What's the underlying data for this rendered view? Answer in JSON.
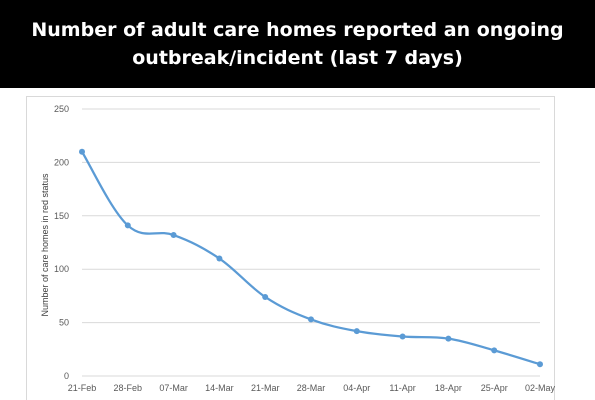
{
  "header": {
    "title": "Number of adult care homes reported an ongoing outbreak/incident (last 7 days)"
  },
  "colors": {
    "banner_bg": "#000000",
    "series_line": "#5b9bd5",
    "gridline": "#d9d9d9"
  },
  "chart_data": {
    "type": "line",
    "title": "",
    "xlabel": "",
    "ylabel": "Number of care homes in red status",
    "categories": [
      "21-Feb",
      "28-Feb",
      "07-Mar",
      "14-Mar",
      "21-Mar",
      "28-Mar",
      "04-Apr",
      "11-Apr",
      "18-Apr",
      "25-Apr",
      "02-May"
    ],
    "series": [
      {
        "values": [
          210,
          141,
          132,
          110,
          74,
          53,
          42,
          37,
          35,
          24,
          11
        ]
      }
    ],
    "ylim": [
      0,
      250
    ],
    "yticks": [
      0,
      50,
      100,
      150,
      200,
      250
    ],
    "grid": true,
    "legend": "none",
    "smooth": true
  }
}
